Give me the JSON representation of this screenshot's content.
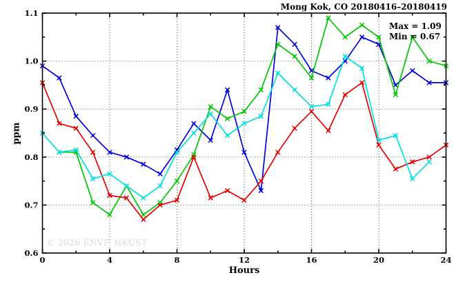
{
  "chart": {
    "title": "Mong Kok, CO 20180416–20180419",
    "annotation": {
      "max_label": "Max = 1.09",
      "min_label": "Min = 0.67"
    },
    "ylabel": "ppm",
    "xlabel": "Hours",
    "watermark": "© 2026 ENVF, HKUST"
  },
  "chart_data": {
    "type": "line",
    "title": "Mong Kok, CO 20180416–20180419",
    "xlabel": "Hours",
    "ylabel": "ppm",
    "xlim": [
      0,
      24
    ],
    "ylim": [
      0.6,
      1.1
    ],
    "x_tick_labels": [
      "0",
      "4",
      "8",
      "12",
      "16",
      "20",
      "24"
    ],
    "x_major_ticks": [
      0,
      4,
      8,
      12,
      16,
      20,
      24
    ],
    "x_minor_step": 2,
    "y_tick_labels": [
      "0.6",
      "0.7",
      "0.8",
      "0.9",
      "1.0",
      "1.1"
    ],
    "y_major_ticks": [
      0.6,
      0.7,
      0.8,
      0.9,
      1.0,
      1.1
    ],
    "y_minor_step": 0.05,
    "grid": "dotted gray at major ticks, ticks mirrored on all four sides",
    "legend": "none",
    "marker": "star-cross",
    "stated_max": 1.09,
    "stated_min": 0.67,
    "x": [
      0,
      1,
      2,
      3,
      4,
      5,
      6,
      7,
      8,
      9,
      10,
      11,
      12,
      13,
      14,
      15,
      16,
      17,
      18,
      19,
      20,
      21,
      22,
      23,
      24
    ],
    "series": [
      {
        "name": "series-blue",
        "color": "#0000dd",
        "values": [
          0.99,
          0.965,
          0.885,
          0.845,
          0.81,
          0.8,
          0.785,
          0.765,
          0.815,
          0.87,
          0.835,
          0.94,
          0.81,
          0.73,
          1.07,
          1.035,
          0.98,
          0.965,
          1.0,
          1.05,
          1.035,
          0.95,
          0.98,
          0.955,
          0.955
        ]
      },
      {
        "name": "series-green",
        "color": "#00c800",
        "values": [
          null,
          0.81,
          0.81,
          0.705,
          0.68,
          0.74,
          0.68,
          0.705,
          0.75,
          0.805,
          0.905,
          0.88,
          0.895,
          0.94,
          1.035,
          1.01,
          0.965,
          1.09,
          1.05,
          1.075,
          1.05,
          0.93,
          1.05,
          1.0,
          0.99
        ]
      },
      {
        "name": "series-red",
        "color": "#e60000",
        "values": [
          0.955,
          0.87,
          0.86,
          0.81,
          0.72,
          0.715,
          0.67,
          0.7,
          0.71,
          0.8,
          0.715,
          0.73,
          0.71,
          0.75,
          0.81,
          0.86,
          0.895,
          0.855,
          0.93,
          0.955,
          0.825,
          0.775,
          0.79,
          0.8,
          0.825
        ]
      },
      {
        "name": "series-cyan",
        "color": "#00e0e0",
        "values": [
          0.85,
          0.81,
          0.815,
          0.755,
          0.765,
          0.74,
          0.715,
          0.74,
          0.81,
          0.85,
          0.89,
          0.845,
          0.87,
          0.885,
          0.975,
          0.94,
          0.905,
          0.91,
          1.01,
          0.985,
          0.835,
          0.845,
          0.755,
          0.79,
          null
        ]
      }
    ]
  }
}
